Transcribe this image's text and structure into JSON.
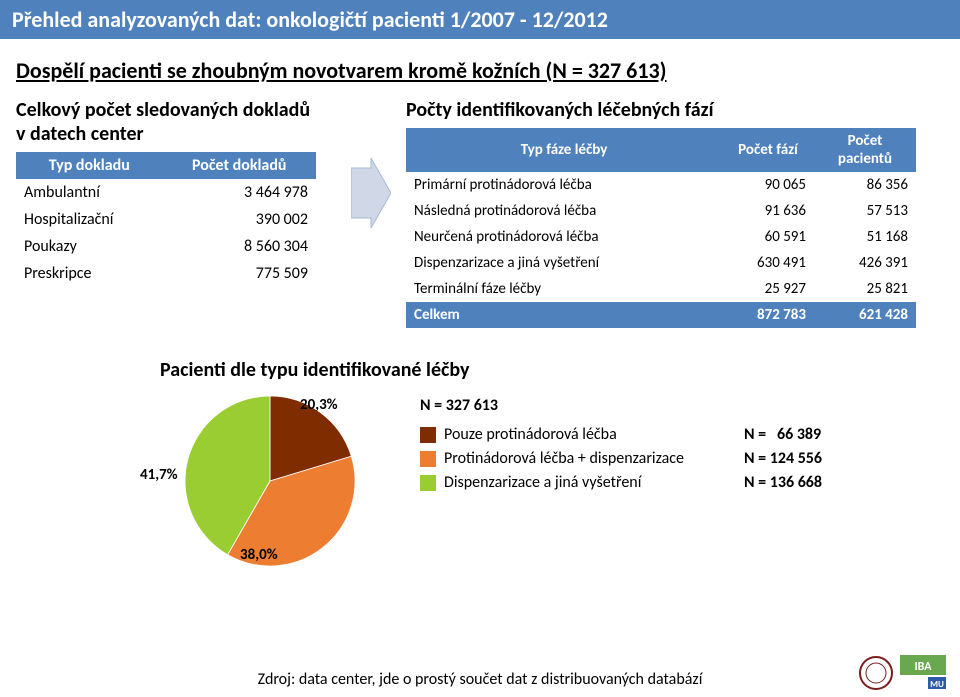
{
  "title": "Přehled analyzovaných dat: onkologičtí pacienti 1/2007 - 12/2012",
  "subtitle": "Dospělí pacienti se zhoubným novotvarem kromě kožních (N = 327 613)",
  "left": {
    "title_l1": "Celkový počet sledovaných dokladů",
    "title_l2": "v datech center",
    "headers": {
      "c1": "Typ dokladu",
      "c2": "Počet dokladů"
    },
    "rows": [
      {
        "label": "Ambulantní",
        "value": "3 464 978"
      },
      {
        "label": "Hospitalizační",
        "value": "390 002"
      },
      {
        "label": "Poukazy",
        "value": "8 560 304"
      },
      {
        "label": "Preskripce",
        "value": "775 509"
      }
    ]
  },
  "right": {
    "title": "Počty identifikovaných léčebných fází",
    "headers": {
      "c1": "Typ fáze léčby",
      "c2": "Počet fází",
      "c3": "Počet pacientů"
    },
    "rows": [
      {
        "label": "Primární protinádorová léčba",
        "v1": "90 065",
        "v2": "86 356"
      },
      {
        "label": "Následná protinádorová léčba",
        "v1": "91 636",
        "v2": "57 513"
      },
      {
        "label": "Neurčená protinádorová léčba",
        "v1": "60 591",
        "v2": "51 168"
      },
      {
        "label": "Dispenzarizace a jiná vyšetření",
        "v1": "630 491",
        "v2": "426 391"
      },
      {
        "label": "Terminální fáze léčby",
        "v1": "25 927",
        "v2": "25 821"
      }
    ],
    "total": {
      "label": "Celkem",
      "v1": "872 783",
      "v2": "621 428"
    }
  },
  "pie": {
    "title": "Pacienti dle typu identifikované léčby",
    "slices": [
      {
        "label": "Pouze protinádorová léčba",
        "pct": 20.3,
        "pct_label": "20,3%",
        "color": "#7f2d00",
        "n": "N =   66 389"
      },
      {
        "label": "Protinádorová léčba + dispenzarizace",
        "pct": 38.0,
        "pct_label": "38,0%",
        "color": "#ed7d31",
        "n": "N = 124 556"
      },
      {
        "label": "Dispenzarizace a  jiná vyšetření",
        "pct": 41.7,
        "pct_label": "41,7%",
        "color": "#9acd32",
        "n": "N = 136 668"
      }
    ],
    "n_total": "N = 327 613",
    "pie_background": "#ffffff"
  },
  "source": "Zdroj: data center, jde o prostý součet dat z distribuovaných databází",
  "icons": {
    "iba_text": "IBA",
    "mu_text": "MU"
  },
  "colors": {
    "header": "#4f81bd"
  }
}
